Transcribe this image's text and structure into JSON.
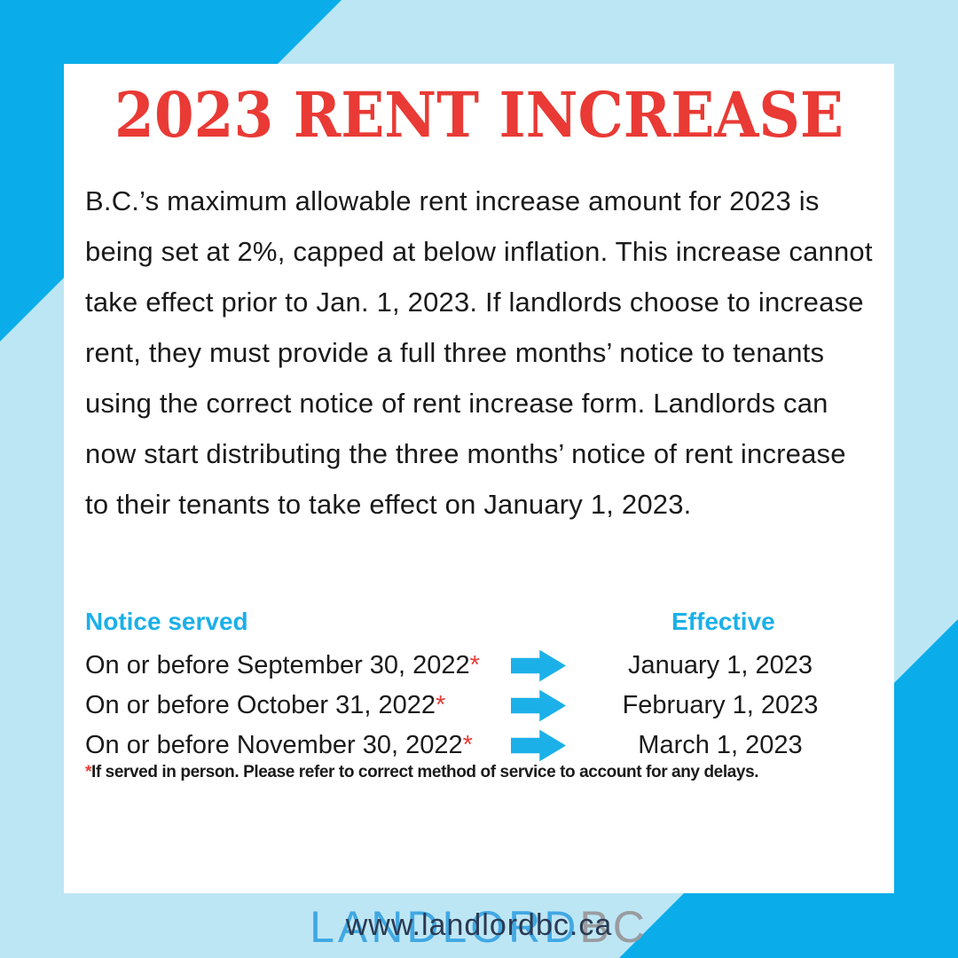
{
  "colors": {
    "bg": "#BDE6F5",
    "accent": "#0AADE9",
    "card": "#FFFFFF",
    "red": "#E93A35",
    "cyan_text": "#1CB0E8",
    "body_text": "#1A1A1A",
    "logo_blue": "#41A8E3",
    "logo_gray": "#9A9C9F",
    "url_navy": "#2C3A52"
  },
  "title": {
    "text": "2023 RENT INCREASE"
  },
  "body": {
    "text": "B.C.’s maximum allowable rent increase amount for 2023 is being set at 2%, capped at below inflation. This increase cannot take effect prior to Jan. 1, 2023. If landlords choose to increase rent, they must provide a full three months’ notice to tenants using the correct notice of rent increase form. Landlords can now start distributing the three months’ notice of rent increase to their tenants to take effect on January 1, 2023."
  },
  "schedule": {
    "notice_header": "Notice served",
    "effective_header": "Effective",
    "asterisk": "*",
    "rows": [
      {
        "notice": "On or before September 30, 2022",
        "effective": "January 1, 2023"
      },
      {
        "notice": "On or before October 31, 2022",
        "effective": "February 1, 2023"
      },
      {
        "notice": "On or before November 30, 2022",
        "effective": "March 1, 2023"
      }
    ],
    "footnote_asterisk": "*",
    "footnote_text": "If served in person. Please refer to correct method of service to account for any delays."
  },
  "logo": {
    "part1": "LANDLORD",
    "part2": "BC"
  },
  "footer": {
    "url": "www.landlordbc.ca"
  }
}
